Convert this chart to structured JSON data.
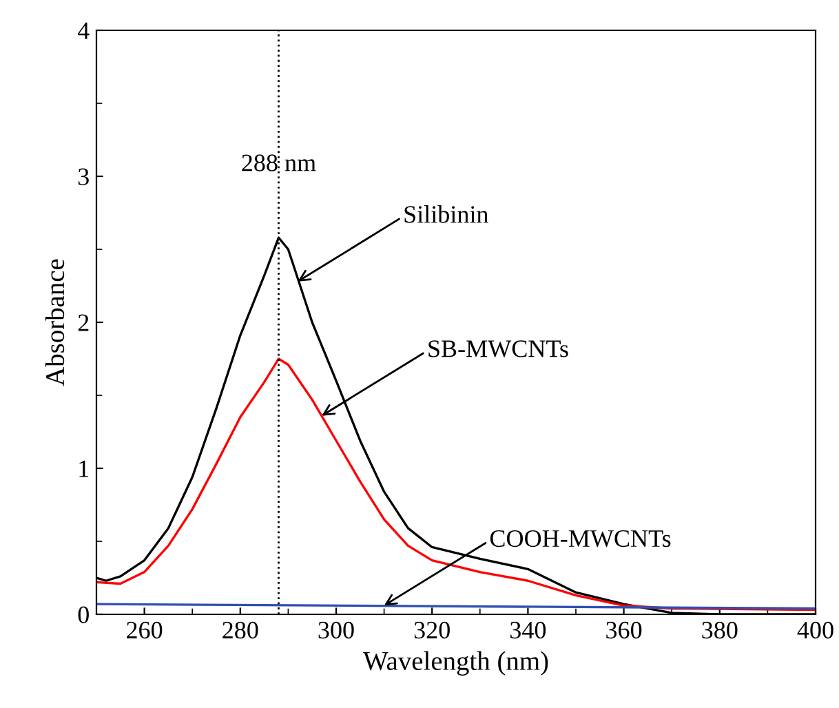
{
  "chart_data": {
    "type": "line",
    "xlabel": "Wavelength (nm)",
    "ylabel": "Absorbance",
    "xlim": [
      250,
      400
    ],
    "xticks": [
      260,
      280,
      300,
      320,
      340,
      360,
      380,
      400
    ],
    "ylim": [
      0,
      4
    ],
    "yticks": [
      0,
      1,
      2,
      3,
      4
    ],
    "grid": false,
    "legend": false,
    "marker": "none",
    "line_style": "solid",
    "series": [
      {
        "color": "#000000",
        "x": [
          250,
          252,
          255,
          260,
          265,
          270,
          275,
          280,
          285,
          288,
          290,
          295,
          300,
          305,
          310,
          315,
          320,
          330,
          340,
          350,
          360,
          370,
          380,
          400
        ],
        "values": [
          0.25,
          0.23,
          0.26,
          0.37,
          0.59,
          0.94,
          1.41,
          1.91,
          2.32,
          2.58,
          2.5,
          2.0,
          1.6,
          1.19,
          0.84,
          0.59,
          0.46,
          0.38,
          0.31,
          0.15,
          0.07,
          0.01,
          0,
          0
        ]
      },
      {
        "color": "#ff0000",
        "x": [
          250,
          255,
          260,
          265,
          270,
          275,
          280,
          285,
          288,
          290,
          295,
          300,
          305,
          310,
          315,
          320,
          330,
          340,
          350,
          360,
          370,
          400
        ],
        "values": [
          0.22,
          0.21,
          0.29,
          0.47,
          0.72,
          1.03,
          1.35,
          1.59,
          1.75,
          1.71,
          1.47,
          1.19,
          0.91,
          0.65,
          0.47,
          0.37,
          0.29,
          0.23,
          0.13,
          0.06,
          0.04,
          0.03
        ]
      },
      {
        "color": "#3050b0",
        "x": [
          250,
          400
        ],
        "values": [
          0.07,
          0.04
        ]
      }
    ],
    "ref_lines": [
      {
        "axis": "x",
        "value": 288,
        "label": "288 nm",
        "color": "#000000",
        "line_style": "dotted"
      }
    ],
    "annotations": [
      {
        "text": "Silibinin",
        "x": 292,
        "y": 2.28
      },
      {
        "text": "SB-MWCNTs",
        "x": 297,
        "y": 1.36
      },
      {
        "text": "COOH-MWCNTs",
        "x": 310,
        "y": 0.06
      }
    ]
  }
}
